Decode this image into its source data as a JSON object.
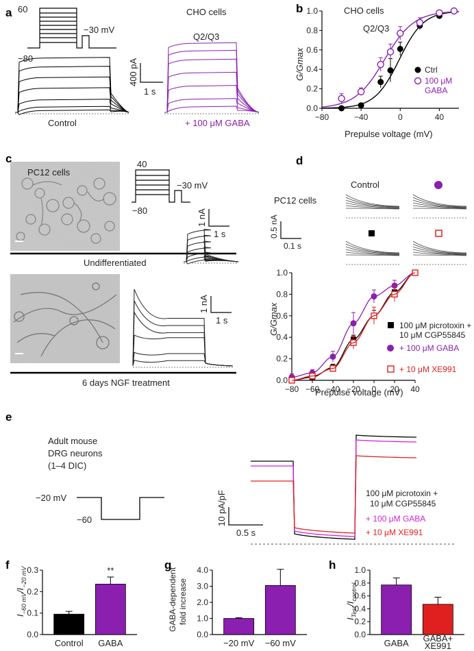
{
  "colors": {
    "black": "#000000",
    "purple": "#8a1fb0",
    "magenta": "#d61fd6",
    "red": "#e0201e",
    "gray": "#666666"
  },
  "panel_a": {
    "label": "a",
    "title": "CHO cells",
    "subtitle": "Q2/Q3",
    "protocol": {
      "top": "60",
      "bottom": "−80",
      "test": "−30 mV"
    },
    "scale": {
      "y": "400 pA",
      "x": "1 s"
    },
    "control_label": "Control",
    "gaba_label": "+ 100 μM GABA",
    "control_steps": [
      0.02,
      0.06,
      0.14,
      0.27,
      0.39,
      0.51,
      0.61
    ],
    "gaba_steps": [
      0.05,
      0.12,
      0.24,
      0.36,
      0.48,
      0.56,
      0.63
    ]
  },
  "panel_c": {
    "label": "c",
    "cells_label": "PC12 cells",
    "protocol": {
      "top": "40",
      "bottom": "−80",
      "test": "−30 mV"
    },
    "scale1": {
      "y": "1 nA",
      "x": "1 s"
    },
    "scale2": {
      "y": "1 nA",
      "x": "1 s"
    },
    "undiff_label": "Undifferentiated",
    "ngf_label": "6 days NGF treatment",
    "undiff_steps": [
      0.02,
      0.05,
      0.09,
      0.14,
      0.2,
      0.26,
      0.32
    ],
    "ngf_steps": [
      0.06,
      0.14,
      0.32,
      0.56,
      0.68,
      0.8
    ]
  },
  "panel_d": {
    "label": "d",
    "cells_label": "PC12 cells",
    "trace_labels": {
      "control": "Control"
    },
    "scale": {
      "y": "0.5 nA",
      "x": "0.1 s"
    }
  },
  "panel_e": {
    "label": "e",
    "desc": [
      "Adult mouse",
      "DRG neurons",
      "(1–4 DIC)"
    ],
    "protocol": {
      "hold": "−20 mV",
      "step": "−60"
    },
    "scale": {
      "y": "10 pA/pF",
      "x": "0.5 s"
    },
    "legend": [
      "100 μM picrotoxin +",
      "10 μM CGP55845",
      "+ 100 μM GABA",
      "+ 10 μM XE991"
    ]
  },
  "chart_data": [
    {
      "panel": "b",
      "type": "scatter",
      "title": "CHO cells",
      "subtitle": "Q2/Q3",
      "xlabel": "Prepulse voltage (mV)",
      "ylabel": "G/Gmax",
      "xlim": [
        -80,
        60
      ],
      "ylim": [
        0,
        1
      ],
      "xticks": [
        -80,
        -40,
        0,
        40
      ],
      "yticks": [
        0,
        0.2,
        0.4,
        0.6,
        0.8,
        1.0
      ],
      "x": [
        -60,
        -40,
        -20,
        -10,
        0,
        20,
        40,
        55
      ],
      "series": [
        {
          "name": "Ctrl",
          "marker": "filled-circle",
          "color": "#000000",
          "values": [
            0.0,
            0.03,
            0.27,
            0.39,
            0.61,
            0.85,
            0.95,
            1.0
          ],
          "errors": [
            0.02,
            0.02,
            0.06,
            0.12,
            0.07,
            0.04,
            0.02,
            0
          ]
        },
        {
          "name": "100 μM GABA",
          "marker": "open-circle",
          "color": "#8a1fb0",
          "values": [
            0.1,
            0.17,
            0.45,
            0.58,
            0.77,
            0.88,
            0.98,
            1.0
          ],
          "errors": [
            0.05,
            0.04,
            0.07,
            0.08,
            0.07,
            0.05,
            0.02,
            0
          ]
        }
      ],
      "fits": [
        {
          "name": "Ctrl",
          "v_half": -1,
          "slope": 12.5
        },
        {
          "name": "100 μM GABA",
          "v_half": -16,
          "slope": 15
        }
      ]
    },
    {
      "panel": "d",
      "type": "scatter",
      "xlabel": "Prepulse voltage (mV)",
      "ylabel": "G/Gmax",
      "xlim": [
        -80,
        40
      ],
      "ylim": [
        0,
        1
      ],
      "xticks": [
        -80,
        -60,
        -40,
        -20,
        0,
        20,
        40
      ],
      "yticks": [
        0,
        0.2,
        0.4,
        0.6,
        0.8,
        1.0
      ],
      "x": [
        -80,
        -60,
        -40,
        -20,
        0,
        20,
        40
      ],
      "series": [
        {
          "name": "100 μM picrotoxin + 10 μM CGP55845",
          "marker": "filled-square",
          "color": "#000000",
          "values": [
            0.0,
            0.03,
            0.12,
            0.38,
            0.6,
            0.82,
            1.0
          ],
          "errors": [
            0.02,
            0.02,
            0.03,
            0.04,
            0.05,
            0.05,
            0
          ]
        },
        {
          "name": "+ 100 μM GABA",
          "marker": "filled-circle",
          "color": "#8a1fb0",
          "values": [
            0.03,
            0.07,
            0.22,
            0.53,
            0.78,
            0.88,
            1.0
          ],
          "errors": [
            0.03,
            0.03,
            0.05,
            0.1,
            0.06,
            0.05,
            0
          ]
        },
        {
          "name": "+ 10 μM XE991",
          "marker": "open-square",
          "color": "#e0201e",
          "values": [
            0.0,
            0.04,
            0.11,
            0.35,
            0.6,
            0.8,
            1.0
          ],
          "errors": [
            0.02,
            0.02,
            0.03,
            0.06,
            0.08,
            0.07,
            0
          ]
        }
      ]
    },
    {
      "panel": "f",
      "type": "bar",
      "categories": [
        "Control",
        "GABA"
      ],
      "values": [
        0.095,
        0.235
      ],
      "errors": [
        0.013,
        0.033
      ],
      "colors": [
        "#000000",
        "#8a1fb0"
      ],
      "ylabel": "I−60 mV/I−20 mV",
      "ylim": [
        0,
        0.3
      ],
      "yticks": [
        0.0,
        0.1,
        0.2,
        0.3
      ],
      "annotation": "**"
    },
    {
      "panel": "g",
      "type": "bar",
      "categories": [
        "−20 mV",
        "−60 mV"
      ],
      "values": [
        1.0,
        3.05
      ],
      "errors": [
        0.05,
        1.0
      ],
      "colors": [
        "#8a1fb0",
        "#8a1fb0"
      ],
      "ylabel": [
        "GABA-dependent",
        "fold increase"
      ],
      "ylim": [
        0,
        4.0
      ],
      "yticks": [
        0.0,
        1.0,
        2.0,
        3.0,
        4.0
      ]
    },
    {
      "panel": "h",
      "type": "bar",
      "categories": [
        "GABA",
        "GABA+\nXE991"
      ],
      "values": [
        0.77,
        0.47
      ],
      "errors": [
        0.11,
        0.11
      ],
      "colors": [
        "#8a1fb0",
        "#e0201e"
      ],
      "ylabel": "Itest/Icontrol",
      "ylim": [
        0,
        1.0
      ],
      "yticks": [
        0.0,
        0.2,
        0.4,
        0.6,
        0.8,
        1.0
      ]
    }
  ],
  "panel_labels": {
    "b": "b",
    "f": "f",
    "g": "g",
    "h": "h"
  },
  "y_subscripts": {
    "f_num": "I",
    "f_sub1": "−60 mV",
    "f_slash": "/I",
    "f_sub2": "−20 mV",
    "h_num": "I",
    "h_sub1": "Test",
    "h_slash": "/I",
    "h_sub2": "control"
  },
  "h_cats": {
    "cat1": "GABA",
    "cat2_l1": "GABA+",
    "cat2_l2": "XE991"
  },
  "b_legend": {
    "ctrl": "Ctrl",
    "gaba1": "100 μM",
    "gaba2": "GABA"
  },
  "d_legend": {
    "l1a": "100 μM picrotoxin +",
    "l1b": "10 μM CGP55845",
    "l2": "+ 100 μM GABA",
    "l3": "+ 10 μM XE991"
  }
}
